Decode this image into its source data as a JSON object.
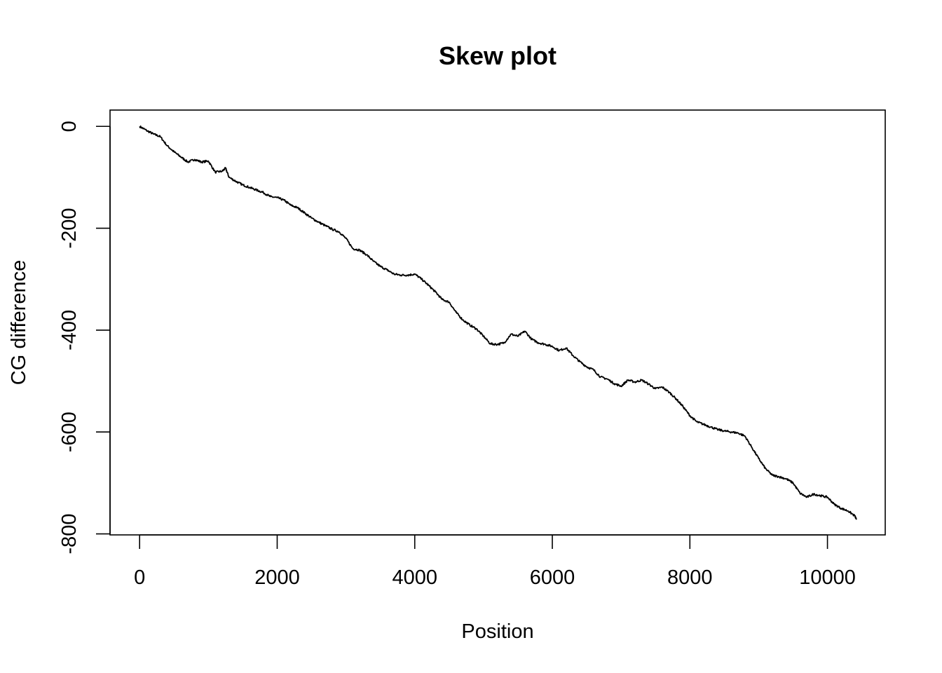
{
  "chart_data": {
    "type": "line",
    "title": "Skew plot",
    "xlabel": "Position",
    "ylabel": "CG difference",
    "xlim": [
      -430,
      10840
    ],
    "ylim": [
      -802,
      32
    ],
    "x_ticks": [
      0,
      2000,
      4000,
      6000,
      8000,
      10000
    ],
    "x_tick_labels": [
      "0",
      "2000",
      "4000",
      "6000",
      "8000",
      "10000"
    ],
    "y_ticks": [
      0,
      -200,
      -400,
      -600,
      -800
    ],
    "y_tick_labels": [
      "0",
      "-200",
      "-400",
      "-600",
      "-800"
    ],
    "grid": false,
    "line_color": "#000000",
    "series": [
      {
        "x": [
          0,
          100,
          200,
          300,
          400,
          500,
          600,
          700,
          800,
          900,
          1000,
          1100,
          1200,
          1250,
          1300,
          1400,
          1500,
          1600,
          1700,
          1800,
          1900,
          2000,
          2100,
          2200,
          2300,
          2400,
          2500,
          2600,
          2700,
          2800,
          2900,
          3000,
          3100,
          3200,
          3300,
          3400,
          3500,
          3600,
          3700,
          3800,
          3900,
          4000,
          4100,
          4200,
          4300,
          4400,
          4500,
          4600,
          4700,
          4800,
          4900,
          5000,
          5100,
          5200,
          5300,
          5400,
          5500,
          5600,
          5700,
          5800,
          5900,
          6000,
          6100,
          6200,
          6300,
          6400,
          6500,
          6600,
          6700,
          6800,
          6900,
          7000,
          7100,
          7200,
          7300,
          7400,
          7500,
          7600,
          7700,
          7800,
          7900,
          8000,
          8100,
          8200,
          8300,
          8400,
          8500,
          8600,
          8700,
          8800,
          8900,
          9000,
          9100,
          9200,
          9300,
          9400,
          9500,
          9600,
          9700,
          9800,
          9900,
          10000,
          10100,
          10200,
          10300,
          10400,
          10420
        ],
        "y": [
          0,
          -8,
          -15,
          -20,
          -38,
          -50,
          -60,
          -70,
          -65,
          -70,
          -68,
          -90,
          -88,
          -82,
          -100,
          -108,
          -115,
          -120,
          -125,
          -130,
          -138,
          -140,
          -145,
          -155,
          -160,
          -170,
          -180,
          -188,
          -195,
          -202,
          -207,
          -220,
          -240,
          -243,
          -252,
          -265,
          -275,
          -282,
          -290,
          -292,
          -292,
          -290,
          -300,
          -312,
          -325,
          -340,
          -345,
          -365,
          -380,
          -390,
          -398,
          -412,
          -427,
          -428,
          -425,
          -408,
          -412,
          -402,
          -418,
          -425,
          -428,
          -432,
          -440,
          -435,
          -450,
          -462,
          -472,
          -478,
          -492,
          -496,
          -505,
          -510,
          -498,
          -502,
          -498,
          -506,
          -515,
          -512,
          -522,
          -535,
          -550,
          -568,
          -580,
          -585,
          -590,
          -595,
          -598,
          -600,
          -602,
          -608,
          -630,
          -652,
          -672,
          -685,
          -688,
          -692,
          -700,
          -720,
          -728,
          -722,
          -725,
          -728,
          -742,
          -750,
          -755,
          -765,
          -772
        ]
      }
    ]
  }
}
